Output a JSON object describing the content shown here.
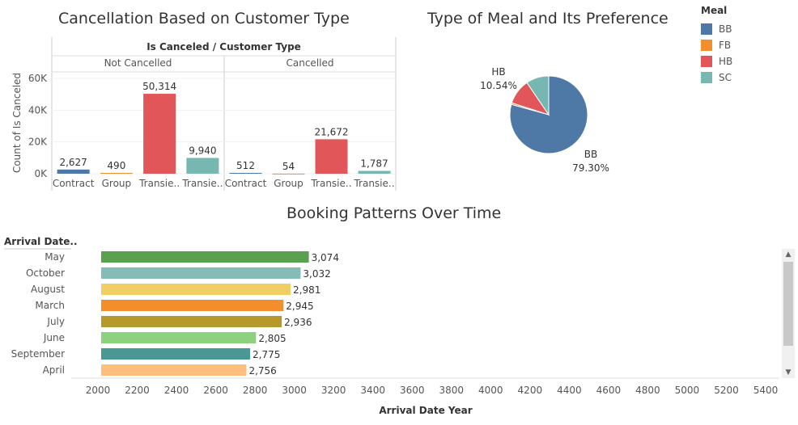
{
  "titles": {
    "cancel": "Cancellation Based on Customer Type",
    "meal": "Type of Meal and Its Preference",
    "booking": "Booking Patterns Over Time"
  },
  "legend": {
    "title": "Meal",
    "items": [
      {
        "label": "BB",
        "color": "#4e79a7"
      },
      {
        "label": "FB",
        "color": "#f28e2b"
      },
      {
        "label": "HB",
        "color": "#e15759"
      },
      {
        "label": "SC",
        "color": "#76b7b2"
      }
    ]
  },
  "chart_data": [
    {
      "type": "bar",
      "title": "Cancellation Based on Customer Type",
      "header": "Is Canceled / Customer Type",
      "ylabel": "Count of Is Canceled",
      "ylim": [
        0,
        60000
      ],
      "yticks": [
        "0K",
        "20K",
        "40K",
        "60K"
      ],
      "panels": [
        {
          "name": "Not Cancelled",
          "categories": [
            "Contract",
            "Group",
            "Transie..",
            "Transie.."
          ],
          "values": [
            2627,
            490,
            50314,
            9940
          ],
          "labels": [
            "2,627",
            "490",
            "50,314",
            "9,940"
          ]
        },
        {
          "name": "Cancelled",
          "categories": [
            "Contract",
            "Group",
            "Transie..",
            "Transie.."
          ],
          "values": [
            512,
            54,
            21672,
            1787
          ],
          "labels": [
            "512",
            "54",
            "21,672",
            "1,787"
          ]
        }
      ],
      "colors": [
        "#4e79a7",
        "#f28e2b",
        "#e15759",
        "#76b7b2"
      ]
    },
    {
      "type": "pie",
      "title": "Type of Meal and Its Preference",
      "slices": [
        {
          "name": "BB",
          "value": 79.3,
          "label": "BB",
          "pct": "79.30%",
          "color": "#4e79a7"
        },
        {
          "name": "FB",
          "value": 0.66,
          "color": "#f28e2b"
        },
        {
          "name": "HB",
          "value": 10.54,
          "label": "HB",
          "pct": "10.54%",
          "color": "#e15759"
        },
        {
          "name": "SC",
          "value": 9.5,
          "color": "#76b7b2"
        }
      ]
    },
    {
      "type": "bar",
      "orientation": "horizontal",
      "title": "Booking Patterns Over Time",
      "ylabel": "Arrival Date..",
      "xlabel": "Arrival Date Year",
      "xlim": [
        2000,
        5400
      ],
      "xticks": [
        "2000",
        "2200",
        "2400",
        "2600",
        "2800",
        "3000",
        "3200",
        "3400",
        "3600",
        "3800",
        "4000",
        "4200",
        "4400",
        "4600",
        "4800",
        "5000",
        "5200",
        "5400"
      ],
      "categories": [
        "May",
        "October",
        "August",
        "March",
        "July",
        "June",
        "September",
        "April"
      ],
      "values": [
        3074,
        3032,
        2981,
        2945,
        2936,
        2805,
        2775,
        2756
      ],
      "labels": [
        "3,074",
        "3,032",
        "2,981",
        "2,945",
        "2,936",
        "2,805",
        "2,775",
        "2,756"
      ],
      "colors": [
        "#59a14f",
        "#86bcb6",
        "#f1ce63",
        "#f28e2b",
        "#b6992d",
        "#8cd17d",
        "#499894",
        "#ffbe7d"
      ]
    }
  ]
}
